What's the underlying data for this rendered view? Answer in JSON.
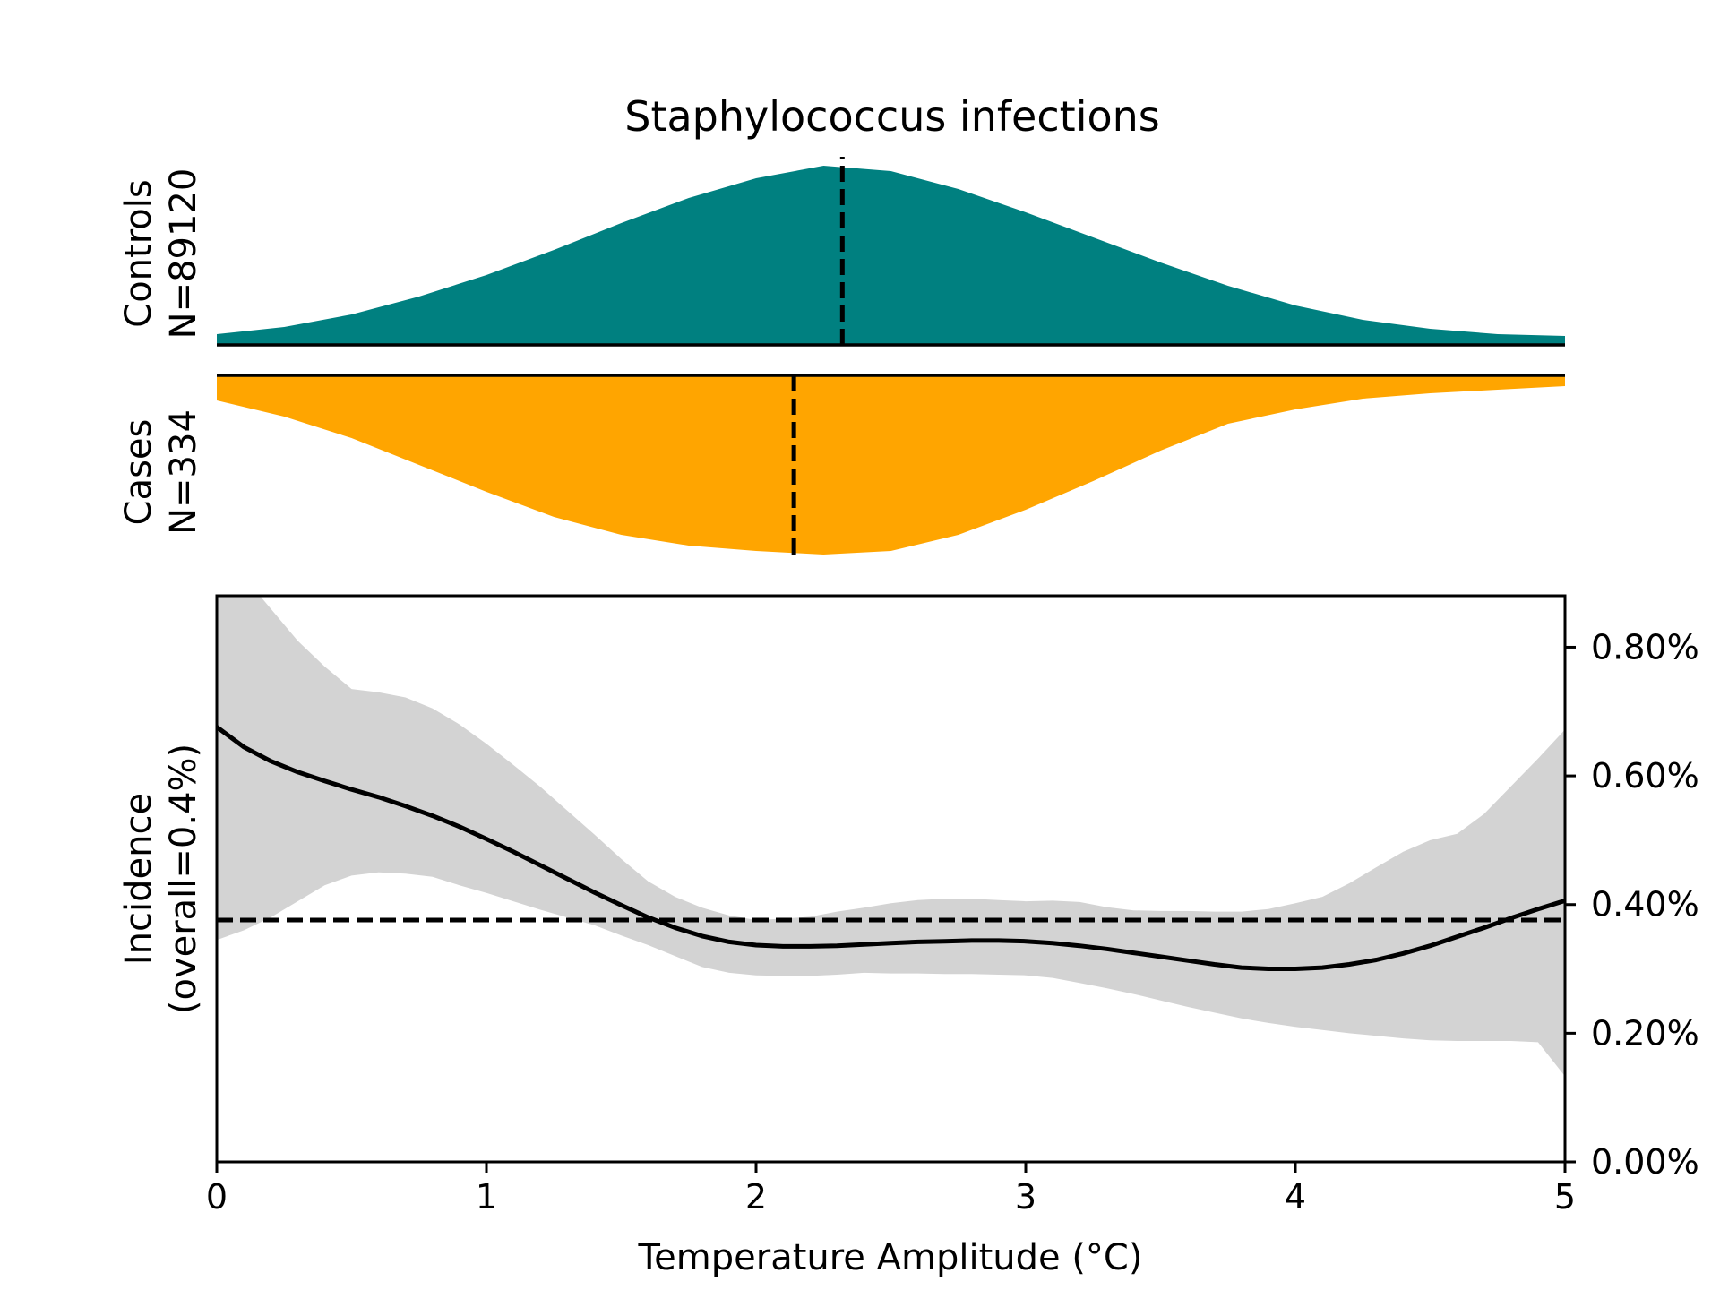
{
  "chart_data": [
    {
      "type": "area",
      "panel": "controls-density",
      "title": "Staphylococcus infections",
      "ylabel_lines": [
        "Controls",
        "N=89120"
      ],
      "color": "#008080",
      "median_x": 2.32,
      "x": [
        0,
        0.25,
        0.5,
        0.75,
        1,
        1.25,
        1.5,
        1.75,
        2,
        2.25,
        2.5,
        2.75,
        3,
        3.25,
        3.5,
        3.75,
        4,
        4.25,
        4.5,
        4.75,
        5
      ],
      "density": [
        0.06,
        0.1,
        0.17,
        0.27,
        0.39,
        0.53,
        0.68,
        0.82,
        0.93,
        1.0,
        0.97,
        0.87,
        0.74,
        0.6,
        0.46,
        0.33,
        0.22,
        0.14,
        0.09,
        0.06,
        0.05
      ]
    },
    {
      "type": "area",
      "panel": "cases-density",
      "ylabel_lines": [
        "Cases",
        "N=334"
      ],
      "color": "#FFA500",
      "median_x": 2.14,
      "x": [
        0,
        0.25,
        0.5,
        0.75,
        1,
        1.25,
        1.5,
        1.75,
        2,
        2.25,
        2.5,
        2.75,
        3,
        3.25,
        3.5,
        3.75,
        4,
        4.25,
        4.5,
        4.75,
        5
      ],
      "density": [
        0.14,
        0.23,
        0.35,
        0.5,
        0.65,
        0.79,
        0.89,
        0.95,
        0.98,
        1.0,
        0.98,
        0.89,
        0.75,
        0.59,
        0.42,
        0.27,
        0.19,
        0.13,
        0.1,
        0.08,
        0.06
      ]
    },
    {
      "type": "line",
      "panel": "incidence",
      "xlabel": "Temperature Amplitude (°C)",
      "ylabel_lines": [
        "Incidence",
        "(overall=0.4%)"
      ],
      "xlim": [
        0,
        5
      ],
      "ylim": [
        0,
        0.88
      ],
      "x_ticks": [
        0,
        1,
        2,
        3,
        4,
        5
      ],
      "x_tick_labels": [
        "0",
        "1",
        "2",
        "3",
        "4",
        "5"
      ],
      "y_ticks": [
        0,
        0.2,
        0.4,
        0.6,
        0.8
      ],
      "y_tick_labels": [
        "0.00%",
        "0.20%",
        "0.40%",
        "0.60%",
        "0.80%"
      ],
      "overall_line": 0.376,
      "line_color": "#000000",
      "band_color": "#d3d3d3",
      "x": [
        0,
        0.1,
        0.2,
        0.3,
        0.4,
        0.5,
        0.6,
        0.7,
        0.8,
        0.9,
        1.0,
        1.1,
        1.2,
        1.3,
        1.4,
        1.5,
        1.6,
        1.7,
        1.8,
        1.9,
        2.0,
        2.1,
        2.2,
        2.3,
        2.4,
        2.5,
        2.6,
        2.7,
        2.8,
        2.9,
        3.0,
        3.1,
        3.2,
        3.3,
        3.4,
        3.5,
        3.6,
        3.7,
        3.8,
        3.9,
        4.0,
        4.1,
        4.2,
        4.3,
        4.4,
        4.5,
        4.6,
        4.7,
        4.8,
        4.9,
        5.0
      ],
      "estimate": [
        0.676,
        0.645,
        0.623,
        0.606,
        0.592,
        0.579,
        0.567,
        0.553,
        0.538,
        0.521,
        0.502,
        0.482,
        0.461,
        0.44,
        0.419,
        0.399,
        0.38,
        0.364,
        0.351,
        0.342,
        0.337,
        0.335,
        0.335,
        0.336,
        0.338,
        0.34,
        0.342,
        0.343,
        0.344,
        0.344,
        0.343,
        0.34,
        0.336,
        0.331,
        0.325,
        0.319,
        0.313,
        0.307,
        0.302,
        0.3,
        0.3,
        0.302,
        0.307,
        0.314,
        0.324,
        0.336,
        0.35,
        0.364,
        0.379,
        0.393,
        0.406
      ],
      "ci_lower": [
        0.345,
        0.36,
        0.38,
        0.405,
        0.43,
        0.445,
        0.45,
        0.448,
        0.443,
        0.43,
        0.418,
        0.405,
        0.392,
        0.38,
        0.368,
        0.352,
        0.337,
        0.32,
        0.303,
        0.294,
        0.29,
        0.289,
        0.289,
        0.291,
        0.294,
        0.293,
        0.293,
        0.292,
        0.292,
        0.291,
        0.29,
        0.286,
        0.278,
        0.27,
        0.261,
        0.251,
        0.241,
        0.232,
        0.223,
        0.216,
        0.21,
        0.205,
        0.2,
        0.196,
        0.192,
        0.189,
        0.188,
        0.188,
        0.188,
        0.186,
        0.133
      ],
      "ci_upper": [
        0.93,
        0.91,
        0.86,
        0.81,
        0.77,
        0.735,
        0.73,
        0.722,
        0.705,
        0.68,
        0.65,
        0.617,
        0.583,
        0.546,
        0.509,
        0.471,
        0.436,
        0.412,
        0.395,
        0.383,
        0.376,
        0.378,
        0.381,
        0.389,
        0.395,
        0.402,
        0.407,
        0.409,
        0.409,
        0.407,
        0.405,
        0.406,
        0.404,
        0.396,
        0.391,
        0.39,
        0.39,
        0.389,
        0.389,
        0.393,
        0.402,
        0.412,
        0.433,
        0.458,
        0.482,
        0.5,
        0.51,
        0.541,
        0.584,
        0.627,
        0.672
      ]
    }
  ]
}
